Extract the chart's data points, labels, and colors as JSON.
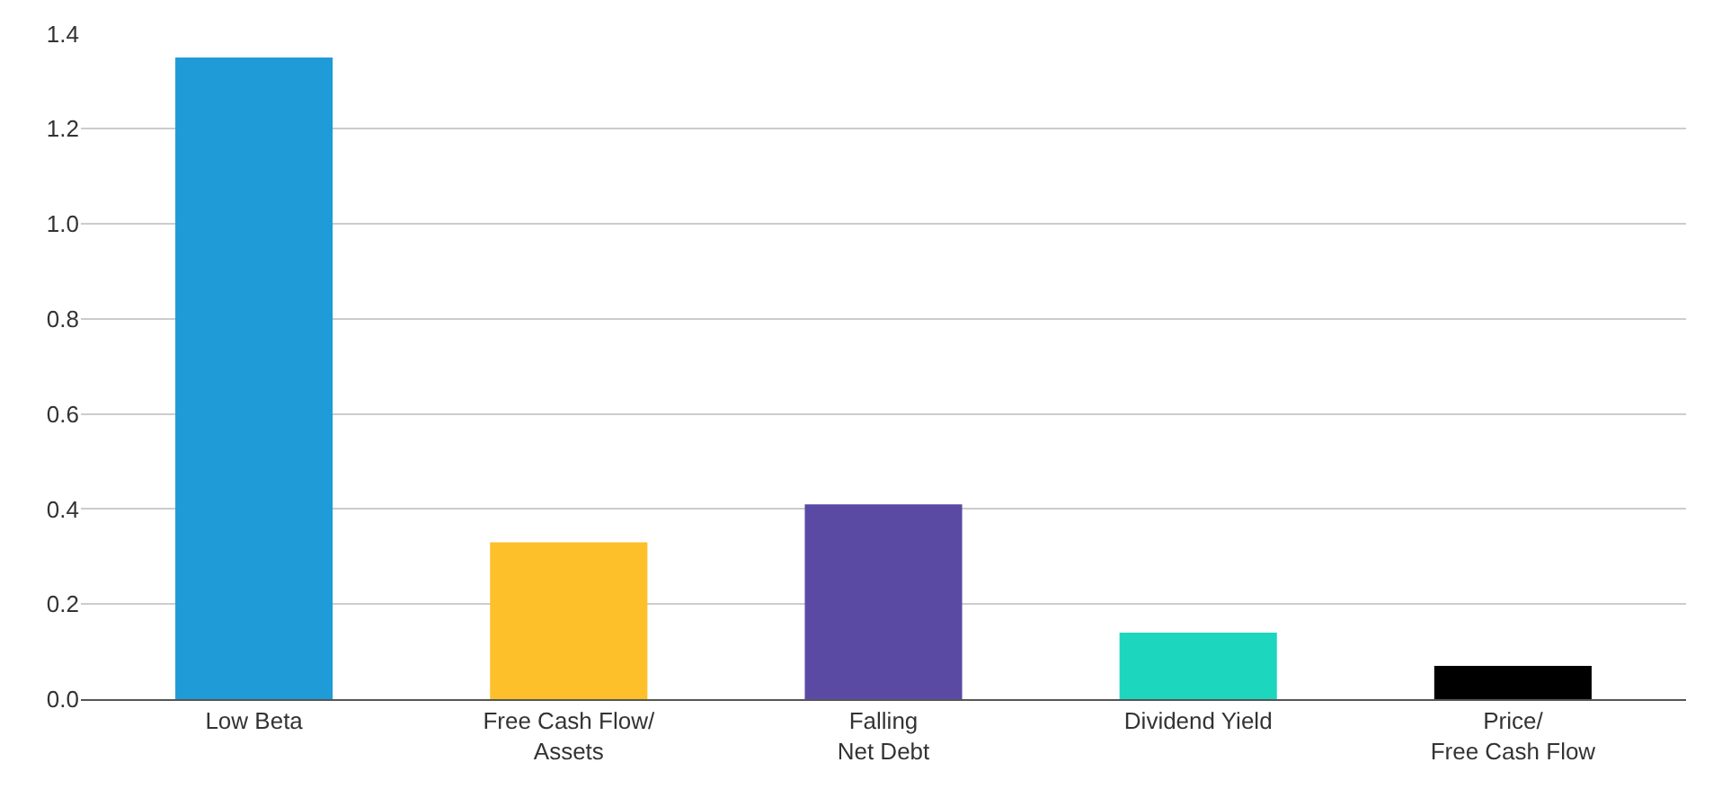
{
  "chart_data": {
    "type": "bar",
    "categories": [
      "Low Beta",
      "Free Cash Flow/\nAssets",
      "Falling\nNet Debt",
      "Dividend Yield",
      "Price/\nFree Cash Flow"
    ],
    "values": [
      1.35,
      0.33,
      0.41,
      0.14,
      0.07
    ],
    "colors": [
      "#1f9bd7",
      "#fdbf2a",
      "#5b4aa4",
      "#1dd6be",
      "#000000"
    ],
    "ylim": [
      0,
      1.4
    ],
    "yticks": [
      {
        "value": 0,
        "label": "0.0"
      },
      0.2,
      0.4,
      0.6,
      0.8,
      {
        "value": 1,
        "label": "1.0"
      },
      1.2,
      1.4
    ],
    "grid": "y"
  }
}
